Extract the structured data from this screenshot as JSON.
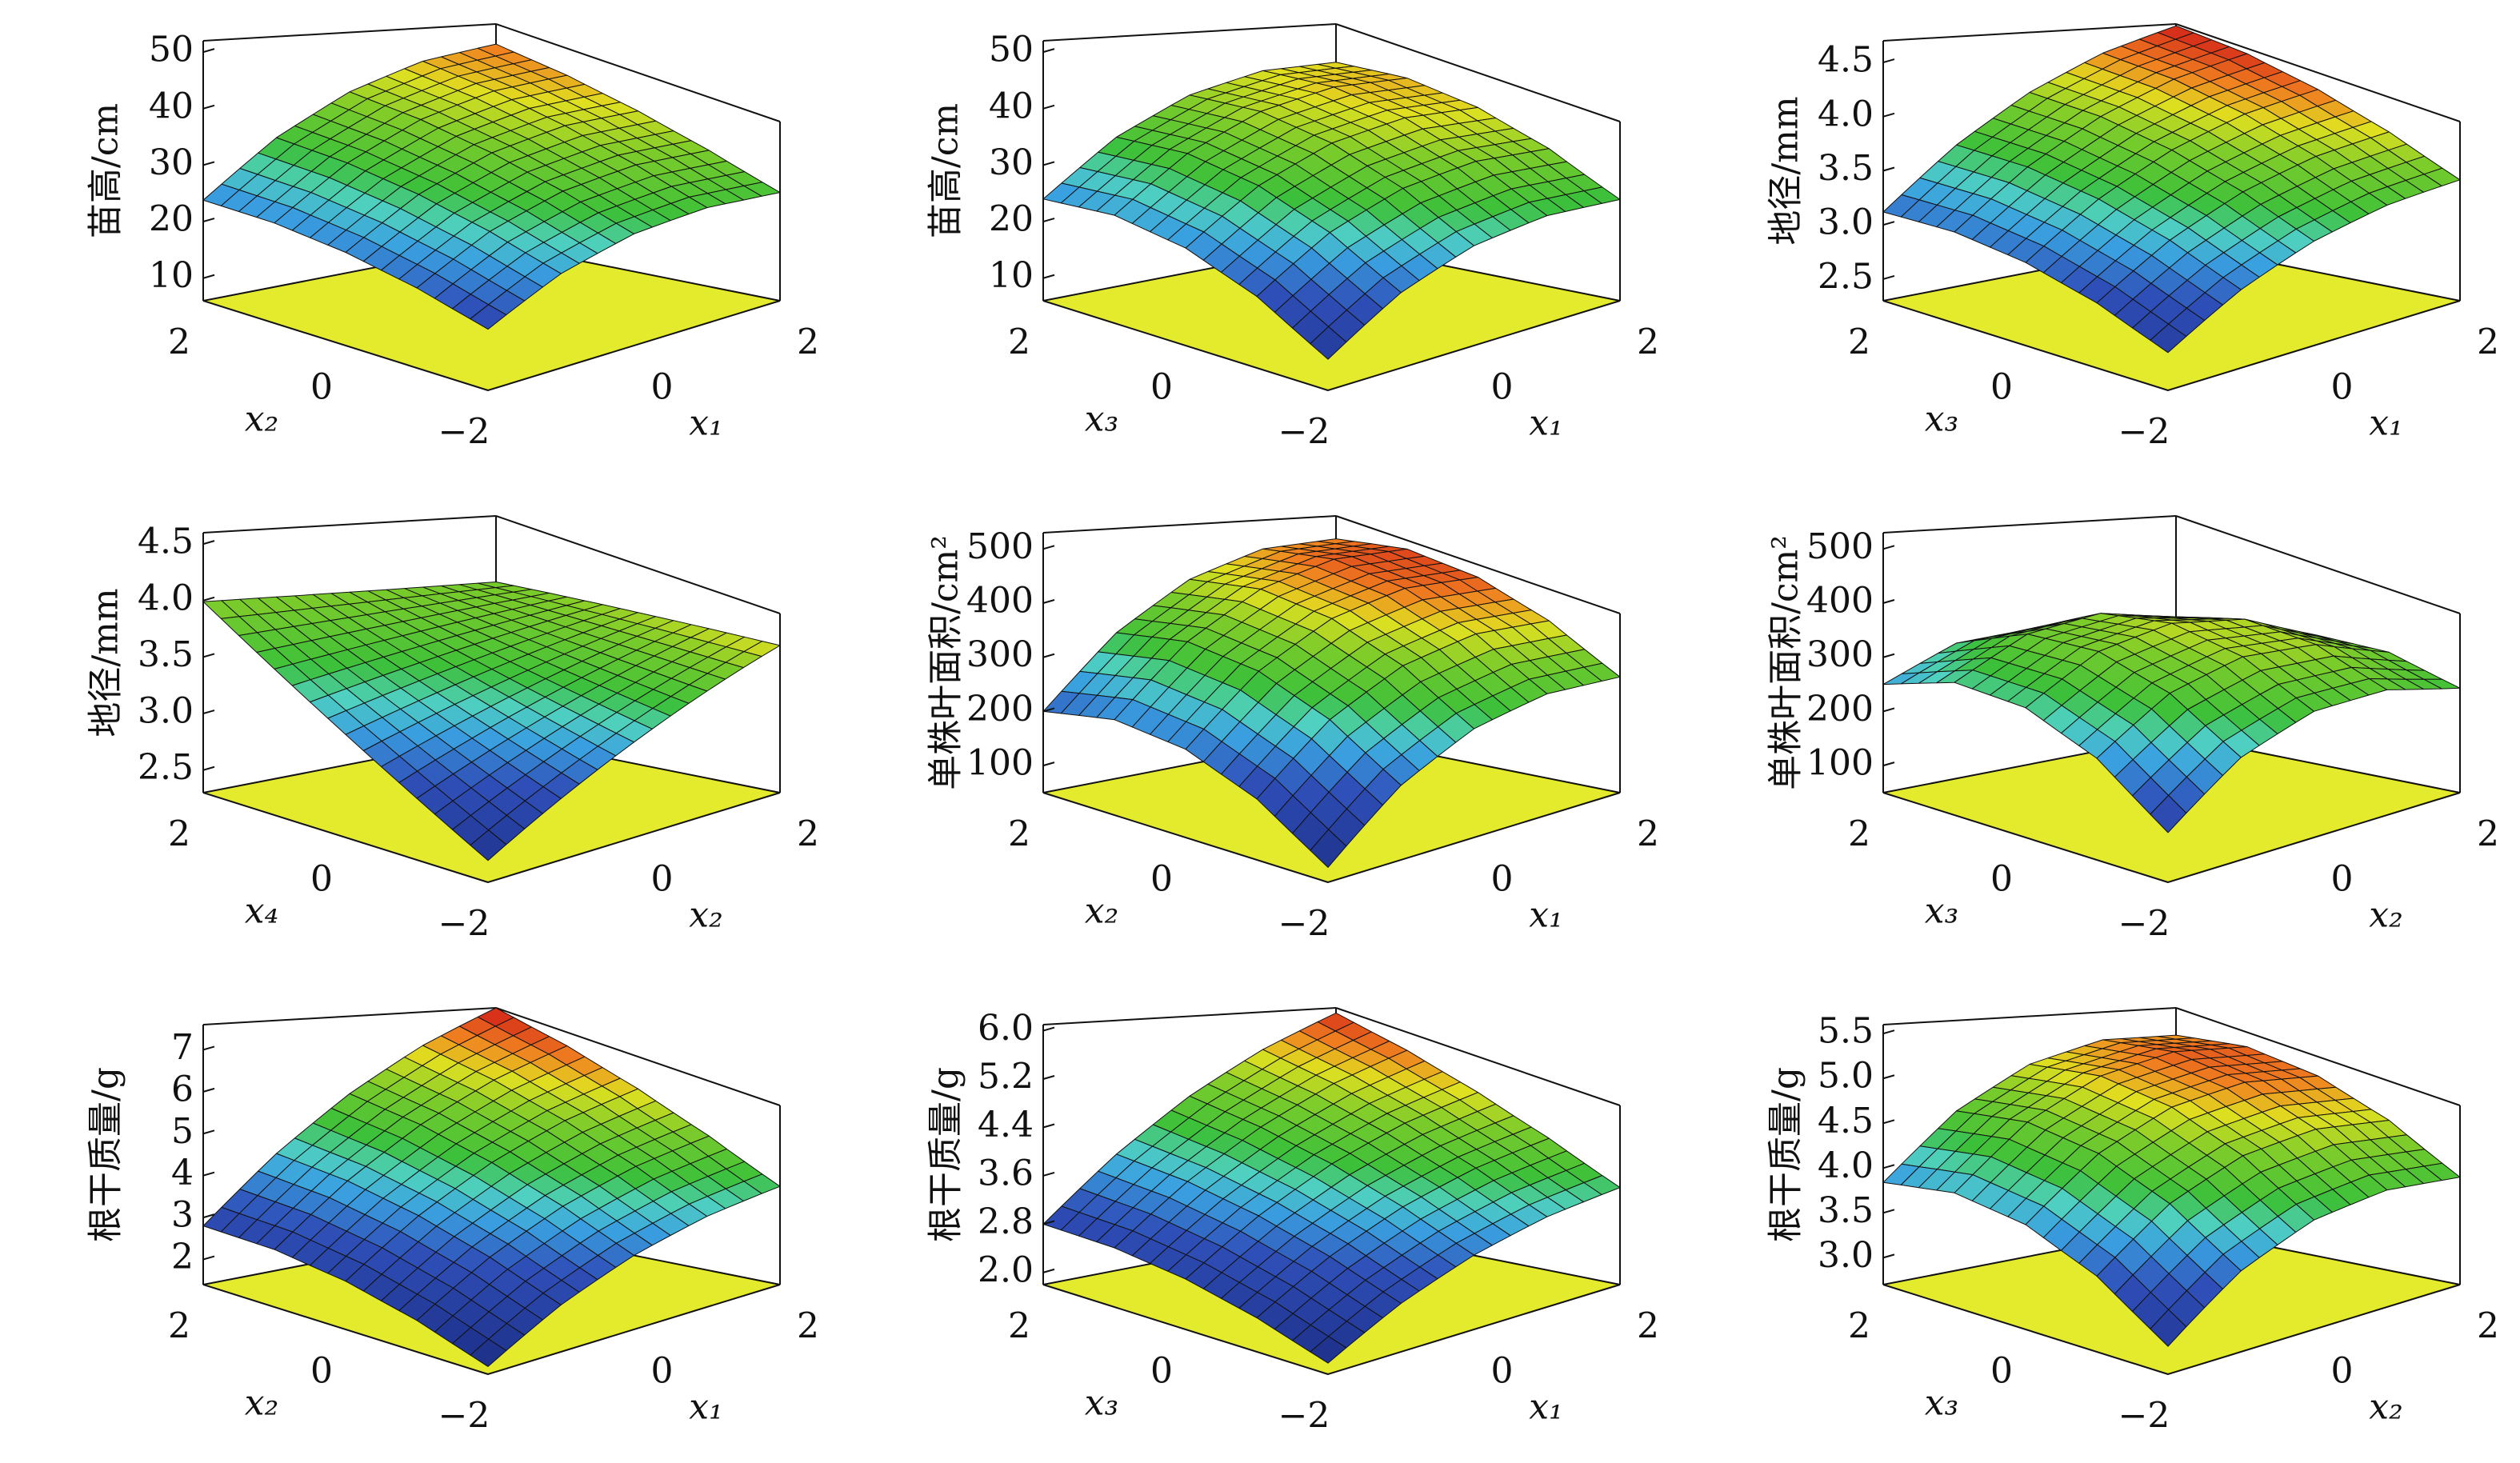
{
  "chart_data": [
    {
      "type": "surface",
      "zlabel": "苗高/cm",
      "xlabel": "x₂",
      "ylabel": "x₁",
      "xlim": [
        -2,
        2
      ],
      "ylim": [
        -2,
        2
      ],
      "zlim": [
        6,
        52
      ],
      "xticks": [
        {
          "value": -2,
          "label": "−2"
        },
        0,
        2
      ],
      "yticks": [
        0,
        2
      ],
      "zticks": [
        10,
        20,
        30,
        40,
        50
      ],
      "x": [
        -2,
        -1,
        0,
        1,
        2
      ],
      "y": [
        -2,
        -1,
        0,
        1,
        2
      ],
      "z": [
        [
          17.8,
          25.4,
          30.6,
          33.4,
          33.8
        ],
        [
          21.1,
          29.2,
          34.9,
          38.2,
          39.1
        ],
        [
          23.2,
          31.8,
          38,
          41.8,
          43.2
        ],
        [
          24.1,
          33.2,
          39.9,
          44.2,
          46.1
        ],
        [
          23.8,
          33.4,
          40.6,
          45.4,
          47.8
        ]
      ]
    },
    {
      "type": "surface",
      "zlabel": "苗高/cm",
      "xlabel": "x₃",
      "ylabel": "x₁",
      "xlim": [
        -2,
        2
      ],
      "ylim": [
        -2,
        2
      ],
      "zlim": [
        6,
        52
      ],
      "xticks": [
        {
          "value": -2,
          "label": "−2"
        },
        0,
        2
      ],
      "yticks": [
        0,
        2
      ],
      "zticks": [
        10,
        20,
        30,
        40,
        50
      ],
      "x": [
        -2,
        -1,
        0,
        1,
        2
      ],
      "y": [
        -2,
        -1,
        0,
        1,
        2
      ],
      "z": [
        [
          12,
          21.5,
          28,
          31.5,
          32
        ],
        [
          19.5,
          29,
          35.5,
          39,
          39.5
        ],
        [
          24,
          33.5,
          40,
          43.5,
          44
        ],
        [
          25.5,
          35,
          41.5,
          45,
          45.5
        ],
        [
          24,
          33.5,
          40,
          43.5,
          44
        ]
      ]
    },
    {
      "type": "surface",
      "zlabel": "地径/mm",
      "xlabel": "x₃",
      "ylabel": "x₁",
      "xlim": [
        -2,
        2
      ],
      "ylim": [
        -2,
        2
      ],
      "zlim": [
        2.3,
        4.7
      ],
      "xticks": [
        {
          "value": -2,
          "label": "−2"
        },
        0,
        2
      ],
      "yticks": [
        0,
        2
      ],
      "zticks": [
        2.5,
        {
          "value": 3,
          "label": "3.0"
        },
        3.5,
        {
          "value": 4,
          "label": "4.0"
        },
        4.5
      ],
      "x": [
        -2,
        -1,
        0,
        1,
        2
      ],
      "y": [
        -2,
        -1,
        0,
        1,
        2
      ],
      "z": [
        [
          2.68,
          3.14,
          3.5,
          3.76,
          3.92
        ],
        [
          2.94,
          3.42,
          3.8,
          4.08,
          4.26
        ],
        [
          3.1,
          3.6,
          4.0,
          4.3,
          4.5
        ],
        [
          3.16,
          3.68,
          4.1,
          4.42,
          4.64
        ],
        [
          3.12,
          3.66,
          4.1,
          4.44,
          4.68
        ]
      ]
    },
    {
      "type": "surface",
      "zlabel": "地径/mm",
      "xlabel": "x₄",
      "ylabel": "x₂",
      "xlim": [
        -2,
        2
      ],
      "ylim": [
        -2,
        2
      ],
      "zlim": [
        2.3,
        4.6
      ],
      "xticks": [
        {
          "value": -2,
          "label": "−2"
        },
        0,
        2
      ],
      "yticks": [
        0,
        2
      ],
      "zticks": [
        2.5,
        {
          "value": 3,
          "label": "3.0"
        },
        3.5,
        {
          "value": 4,
          "label": "4.0"
        },
        4.5
      ],
      "x": [
        -2,
        -1,
        0,
        1,
        2
      ],
      "y": [
        -2,
        -1,
        0,
        1,
        2
      ],
      "z": [
        [
          2.51,
          2.93,
          3.35,
          3.77,
          4.19
        ],
        [
          2.88,
          3.19,
          3.5,
          3.81,
          4.12
        ],
        [
          3.25,
          3.45,
          3.65,
          3.85,
          4.05
        ],
        [
          3.62,
          3.71,
          3.8,
          3.89,
          3.98
        ],
        [
          3.99,
          3.97,
          3.95,
          3.93,
          3.91
        ]
      ]
    },
    {
      "type": "surface",
      "zlabel": "单株叶面积/cm²",
      "xlabel": "x₂",
      "ylabel": "x₁",
      "xlim": [
        -2,
        2
      ],
      "ylim": [
        -2,
        2
      ],
      "zlim": [
        50,
        530
      ],
      "xticks": [
        {
          "value": -2,
          "label": "−2"
        },
        0,
        2
      ],
      "yticks": [
        0,
        2
      ],
      "zticks": [
        100,
        200,
        300,
        400,
        500
      ],
      "x": [
        -2,
        -1,
        0,
        1,
        2
      ],
      "y": [
        -2,
        -1,
        0,
        1,
        2
      ],
      "z": [
        [
          80,
          210,
          300,
          350,
          360
        ],
        [
          170,
          300,
          390,
          440,
          450
        ],
        [
          220,
          350,
          440,
          490,
          500
        ],
        [
          230,
          360,
          450,
          500,
          510
        ],
        [
          200,
          330,
          420,
          470,
          480
        ]
      ]
    },
    {
      "type": "surface",
      "zlabel": "单株叶面积/cm²",
      "xlabel": "x₃",
      "ylabel": "x₂",
      "xlim": [
        -2,
        2
      ],
      "ylim": [
        -2,
        2
      ],
      "zlim": [
        50,
        530
      ],
      "xticks": [
        {
          "value": -2,
          "label": "−2"
        },
        0,
        2
      ],
      "yticks": [
        0,
        2
      ],
      "zticks": [
        100,
        200,
        300,
        400,
        500
      ],
      "x": [
        -2,
        -1,
        0,
        1,
        2
      ],
      "y": [
        -2,
        -1,
        0,
        1,
        2
      ],
      "z": [
        [
          150,
          270,
          340,
          360,
          330
        ],
        [
          250,
          355,
          410,
          415,
          370
        ],
        [
          300,
          390,
          430,
          420,
          360
        ],
        [
          300,
          375,
          400,
          375,
          300
        ],
        [
          250,
          310,
          320,
          280,
          190
        ]
      ]
    },
    {
      "type": "surface",
      "zlabel": "根干质量/g",
      "xlabel": "x₂",
      "ylabel": "x₁",
      "xlim": [
        -2,
        2
      ],
      "ylim": [
        -2,
        2
      ],
      "zlim": [
        1.4,
        7.6
      ],
      "xticks": [
        {
          "value": -2,
          "label": "−2"
        },
        0,
        2
      ],
      "yticks": [
        0,
        2
      ],
      "zticks": [
        2,
        3,
        4,
        5,
        6,
        7
      ],
      "x": [
        -2,
        -1,
        0,
        1,
        2
      ],
      "y": [
        -2,
        -1,
        0,
        1,
        2
      ],
      "z": [
        [
          1.6,
          2.7,
          3.6,
          4.3,
          4.8
        ],
        [
          2.2,
          3.4,
          4.4,
          5.2,
          5.8
        ],
        [
          2.6,
          3.9,
          5.0,
          5.9,
          6.6
        ],
        [
          2.8,
          4.2,
          5.4,
          6.4,
          7.2
        ],
        [
          2.8,
          4.3,
          5.6,
          6.7,
          7.6
        ]
      ]
    },
    {
      "type": "surface",
      "zlabel": "根干质量/g",
      "xlabel": "x₃",
      "ylabel": "x₁",
      "xlim": [
        -2,
        2
      ],
      "ylim": [
        -2,
        2
      ],
      "zlim": [
        1.8,
        6.1
      ],
      "xticks": [
        {
          "value": -2,
          "label": "−2"
        },
        0,
        2
      ],
      "yticks": [
        0,
        2
      ],
      "zticks": [
        {
          "value": 2,
          "label": "2.0"
        },
        2.8,
        3.6,
        4.4,
        5.2,
        {
          "value": 6,
          "label": "6.0"
        }
      ],
      "x": [
        -2,
        -1,
        0,
        1,
        2
      ],
      "y": [
        -2,
        -1,
        0,
        1,
        2
      ],
      "z": [
        [
          2.0,
          2.73,
          3.33,
          3.8,
          4.13
        ],
        [
          2.4,
          3.2,
          3.87,
          4.4,
          4.8
        ],
        [
          2.67,
          3.53,
          4.27,
          4.87,
          5.33
        ],
        [
          2.8,
          3.73,
          4.53,
          5.2,
          5.73
        ],
        [
          2.8,
          3.8,
          4.67,
          5.4,
          6.0
        ]
      ]
    },
    {
      "type": "surface",
      "zlabel": "根干质量/g",
      "xlabel": "x₃",
      "ylabel": "x₂",
      "xlim": [
        -2,
        2
      ],
      "ylim": [
        -2,
        2
      ],
      "zlim": [
        2.7,
        5.6
      ],
      "xticks": [
        {
          "value": -2,
          "label": "−2"
        },
        0,
        2
      ],
      "yticks": [
        0,
        2
      ],
      "zticks": [
        {
          "value": 3,
          "label": "3.0"
        },
        3.5,
        {
          "value": 4,
          "label": "4.0"
        },
        4.5,
        {
          "value": 5,
          "label": "5.0"
        },
        5.5
      ],
      "x": [
        -2,
        -1,
        0,
        1,
        2
      ],
      "y": [
        -2,
        -1,
        0,
        1,
        2
      ],
      "z": [
        [
          3.04,
          3.75,
          4.22,
          4.45,
          4.44
        ],
        [
          3.6,
          4.31,
          4.78,
          5.01,
          5.0
        ],
        [
          3.92,
          4.63,
          5.1,
          5.33,
          5.32
        ],
        [
          4.0,
          4.71,
          5.18,
          5.41,
          5.4
        ],
        [
          3.84,
          4.55,
          5.02,
          5.25,
          5.24
        ]
      ]
    }
  ]
}
